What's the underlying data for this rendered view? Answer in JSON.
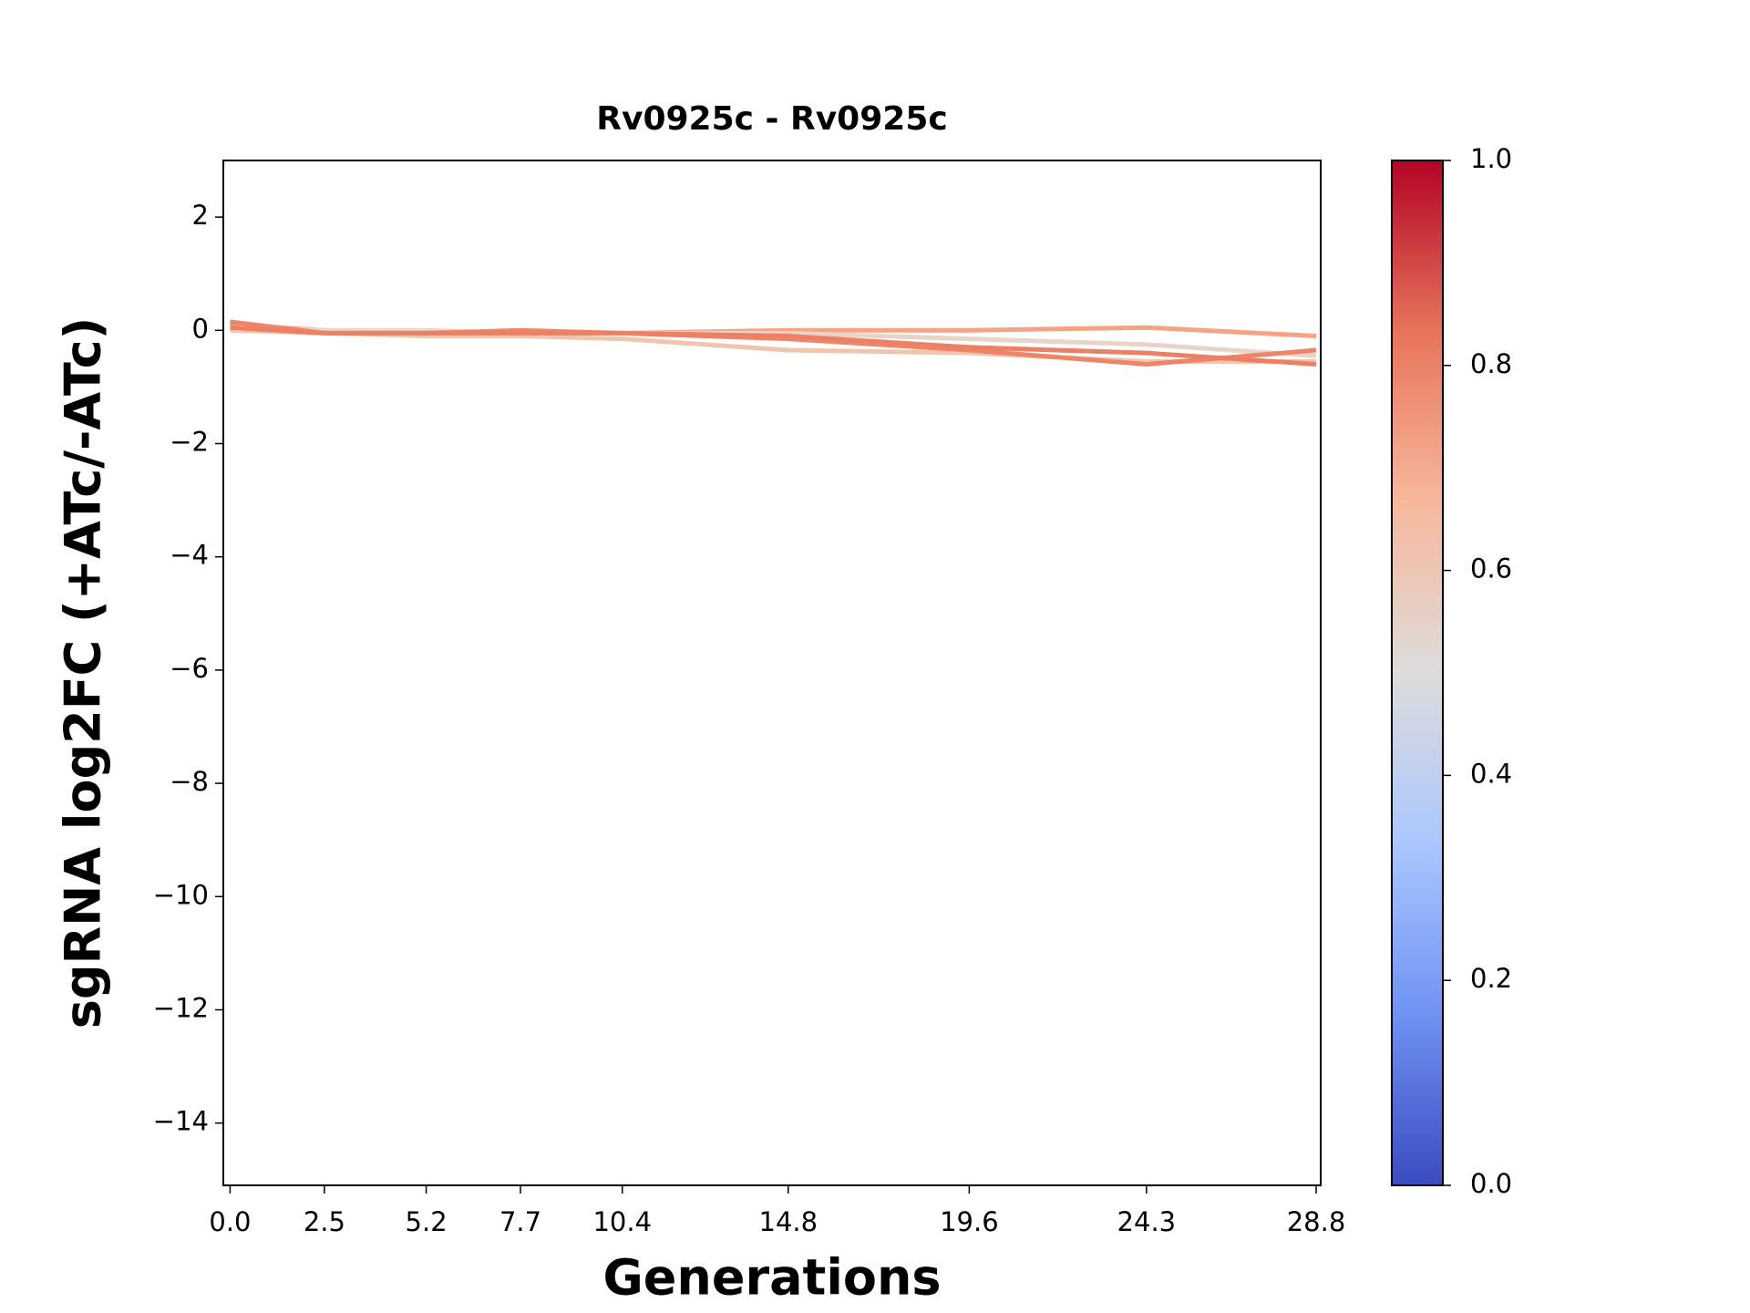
{
  "chart_data": {
    "type": "line",
    "title": "Rv0925c - Rv0925c",
    "xlabel": "Generations",
    "ylabel": "sgRNA log2FC (+ATc/-ATc)",
    "x": [
      0,
      2.5,
      5.2,
      7.7,
      10.4,
      14.8,
      19.6,
      24.3,
      28.8
    ],
    "series": [
      {
        "color": "#f4a383",
        "values": [
          0.1,
          0.0,
          -0.05,
          -0.05,
          -0.05,
          0.0,
          0.0,
          0.05,
          -0.1
        ]
      },
      {
        "color": "#e8d4c8",
        "values": [
          0.05,
          0.0,
          0.0,
          -0.05,
          -0.05,
          -0.05,
          -0.15,
          -0.25,
          -0.45
        ]
      },
      {
        "color": "#f0c5ad",
        "values": [
          0.0,
          -0.05,
          -0.1,
          -0.1,
          -0.15,
          -0.35,
          -0.4,
          -0.55,
          -0.55
        ]
      },
      {
        "color": "#ee8468",
        "values": [
          0.15,
          -0.05,
          -0.05,
          0.0,
          -0.05,
          -0.15,
          -0.35,
          -0.6,
          -0.35
        ]
      },
      {
        "color": "#ec8064",
        "values": [
          0.05,
          -0.05,
          -0.05,
          -0.05,
          -0.05,
          -0.1,
          -0.3,
          -0.4,
          -0.6
        ]
      }
    ],
    "xlim": [
      -0.18,
      28.92
    ],
    "ylim": [
      -15.1,
      3
    ],
    "xticks": [
      {
        "value": 0,
        "label": "0.0"
      },
      2.5,
      5.2,
      7.7,
      10.4,
      14.8,
      19.6,
      24.3,
      28.8
    ],
    "yticks": [
      2,
      0,
      {
        "value": -2,
        "label": "−2"
      },
      {
        "value": -4,
        "label": "−4"
      },
      {
        "value": -6,
        "label": "−6"
      },
      {
        "value": -8,
        "label": "−8"
      },
      {
        "value": -10,
        "label": "−10"
      },
      {
        "value": -12,
        "label": "−12"
      },
      {
        "value": -14,
        "label": "−14"
      }
    ],
    "grid": false,
    "colorbar": {
      "lim": [
        0,
        1
      ],
      "ticks": [
        {
          "value": 0,
          "label": "0.0"
        },
        0.2,
        0.4,
        0.6,
        0.8,
        {
          "value": 1,
          "label": "1.0"
        }
      ],
      "colormap": [
        "#3b4cc0",
        "#6f92f3",
        "#aac7fd",
        "#dddcdc",
        "#f7b89c",
        "#e7745b",
        "#b40426"
      ]
    }
  }
}
